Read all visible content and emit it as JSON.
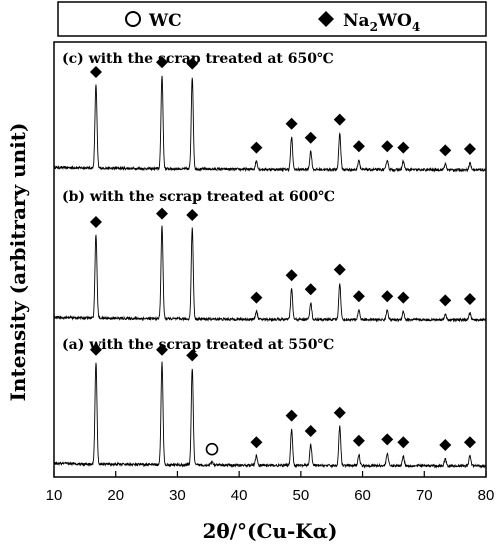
{
  "chart_data": {
    "type": "line",
    "xlabel": "2θ/°(Cu-Kα)",
    "ylabel": "Intensity (arbitrary unit)",
    "xlim": [
      10,
      80
    ],
    "x_ticks": [
      "10",
      "20",
      "30",
      "40",
      "50",
      "60",
      "70",
      "80"
    ],
    "legend": {
      "placement": "top",
      "entries": [
        {
          "label": "WC",
          "marker": "open-circle"
        },
        {
          "label": "Na2WO4",
          "marker": "filled-diamond"
        }
      ]
    },
    "series": [
      {
        "name": "(c) with the scrap treated at 650℃",
        "peaks": [
          {
            "x": 16.8,
            "h": 0.6
          },
          {
            "x": 27.5,
            "h": 0.67
          },
          {
            "x": 32.4,
            "h": 0.66
          },
          {
            "x": 42.8,
            "h": 0.06
          },
          {
            "x": 48.5,
            "h": 0.23
          },
          {
            "x": 51.6,
            "h": 0.13
          },
          {
            "x": 56.3,
            "h": 0.26
          },
          {
            "x": 59.4,
            "h": 0.07
          },
          {
            "x": 64.0,
            "h": 0.07
          },
          {
            "x": 66.6,
            "h": 0.06
          },
          {
            "x": 73.4,
            "h": 0.04
          },
          {
            "x": 77.4,
            "h": 0.05
          }
        ],
        "markers": [
          {
            "x": 16.8,
            "type": "Na2WO4"
          },
          {
            "x": 27.5,
            "type": "Na2WO4"
          },
          {
            "x": 32.4,
            "type": "Na2WO4"
          },
          {
            "x": 42.8,
            "type": "Na2WO4"
          },
          {
            "x": 48.5,
            "type": "Na2WO4"
          },
          {
            "x": 51.6,
            "type": "Na2WO4"
          },
          {
            "x": 56.3,
            "type": "Na2WO4"
          },
          {
            "x": 59.4,
            "type": "Na2WO4"
          },
          {
            "x": 64.0,
            "type": "Na2WO4"
          },
          {
            "x": 66.6,
            "type": "Na2WO4"
          },
          {
            "x": 73.4,
            "type": "Na2WO4"
          },
          {
            "x": 77.4,
            "type": "Na2WO4"
          }
        ]
      },
      {
        "name": "(b) with the scrap treated at 600℃",
        "peaks": [
          {
            "x": 16.8,
            "h": 0.6
          },
          {
            "x": 27.5,
            "h": 0.66
          },
          {
            "x": 32.4,
            "h": 0.65
          },
          {
            "x": 42.8,
            "h": 0.06
          },
          {
            "x": 48.5,
            "h": 0.22
          },
          {
            "x": 51.6,
            "h": 0.12
          },
          {
            "x": 56.3,
            "h": 0.26
          },
          {
            "x": 59.4,
            "h": 0.07
          },
          {
            "x": 64.0,
            "h": 0.07
          },
          {
            "x": 66.6,
            "h": 0.06
          },
          {
            "x": 73.4,
            "h": 0.04
          },
          {
            "x": 77.4,
            "h": 0.05
          }
        ],
        "markers": [
          {
            "x": 16.8,
            "type": "Na2WO4"
          },
          {
            "x": 27.5,
            "type": "Na2WO4"
          },
          {
            "x": 32.4,
            "type": "Na2WO4"
          },
          {
            "x": 42.8,
            "type": "Na2WO4"
          },
          {
            "x": 48.5,
            "type": "Na2WO4"
          },
          {
            "x": 51.6,
            "type": "Na2WO4"
          },
          {
            "x": 56.3,
            "type": "Na2WO4"
          },
          {
            "x": 59.4,
            "type": "Na2WO4"
          },
          {
            "x": 64.0,
            "type": "Na2WO4"
          },
          {
            "x": 66.6,
            "type": "Na2WO4"
          },
          {
            "x": 73.4,
            "type": "Na2WO4"
          },
          {
            "x": 77.4,
            "type": "Na2WO4"
          }
        ]
      },
      {
        "name": "(a) with the scrap treated at 550℃",
        "peaks": [
          {
            "x": 16.8,
            "h": 0.73
          },
          {
            "x": 27.5,
            "h": 0.73
          },
          {
            "x": 32.4,
            "h": 0.69
          },
          {
            "x": 35.6,
            "h": 0.02
          },
          {
            "x": 42.8,
            "h": 0.07
          },
          {
            "x": 48.5,
            "h": 0.26
          },
          {
            "x": 51.6,
            "h": 0.15
          },
          {
            "x": 56.3,
            "h": 0.28
          },
          {
            "x": 59.4,
            "h": 0.08
          },
          {
            "x": 64.0,
            "h": 0.09
          },
          {
            "x": 66.6,
            "h": 0.07
          },
          {
            "x": 73.4,
            "h": 0.05
          },
          {
            "x": 77.4,
            "h": 0.07
          }
        ],
        "markers": [
          {
            "x": 16.8,
            "type": "Na2WO4"
          },
          {
            "x": 27.5,
            "type": "Na2WO4"
          },
          {
            "x": 32.4,
            "type": "Na2WO4"
          },
          {
            "x": 35.6,
            "type": "WC"
          },
          {
            "x": 42.8,
            "type": "Na2WO4"
          },
          {
            "x": 48.5,
            "type": "Na2WO4"
          },
          {
            "x": 51.6,
            "type": "Na2WO4"
          },
          {
            "x": 56.3,
            "type": "Na2WO4"
          },
          {
            "x": 59.4,
            "type": "Na2WO4"
          },
          {
            "x": 64.0,
            "type": "Na2WO4"
          },
          {
            "x": 66.6,
            "type": "Na2WO4"
          },
          {
            "x": 73.4,
            "type": "Na2WO4"
          },
          {
            "x": 77.4,
            "type": "Na2WO4"
          }
        ]
      }
    ]
  }
}
